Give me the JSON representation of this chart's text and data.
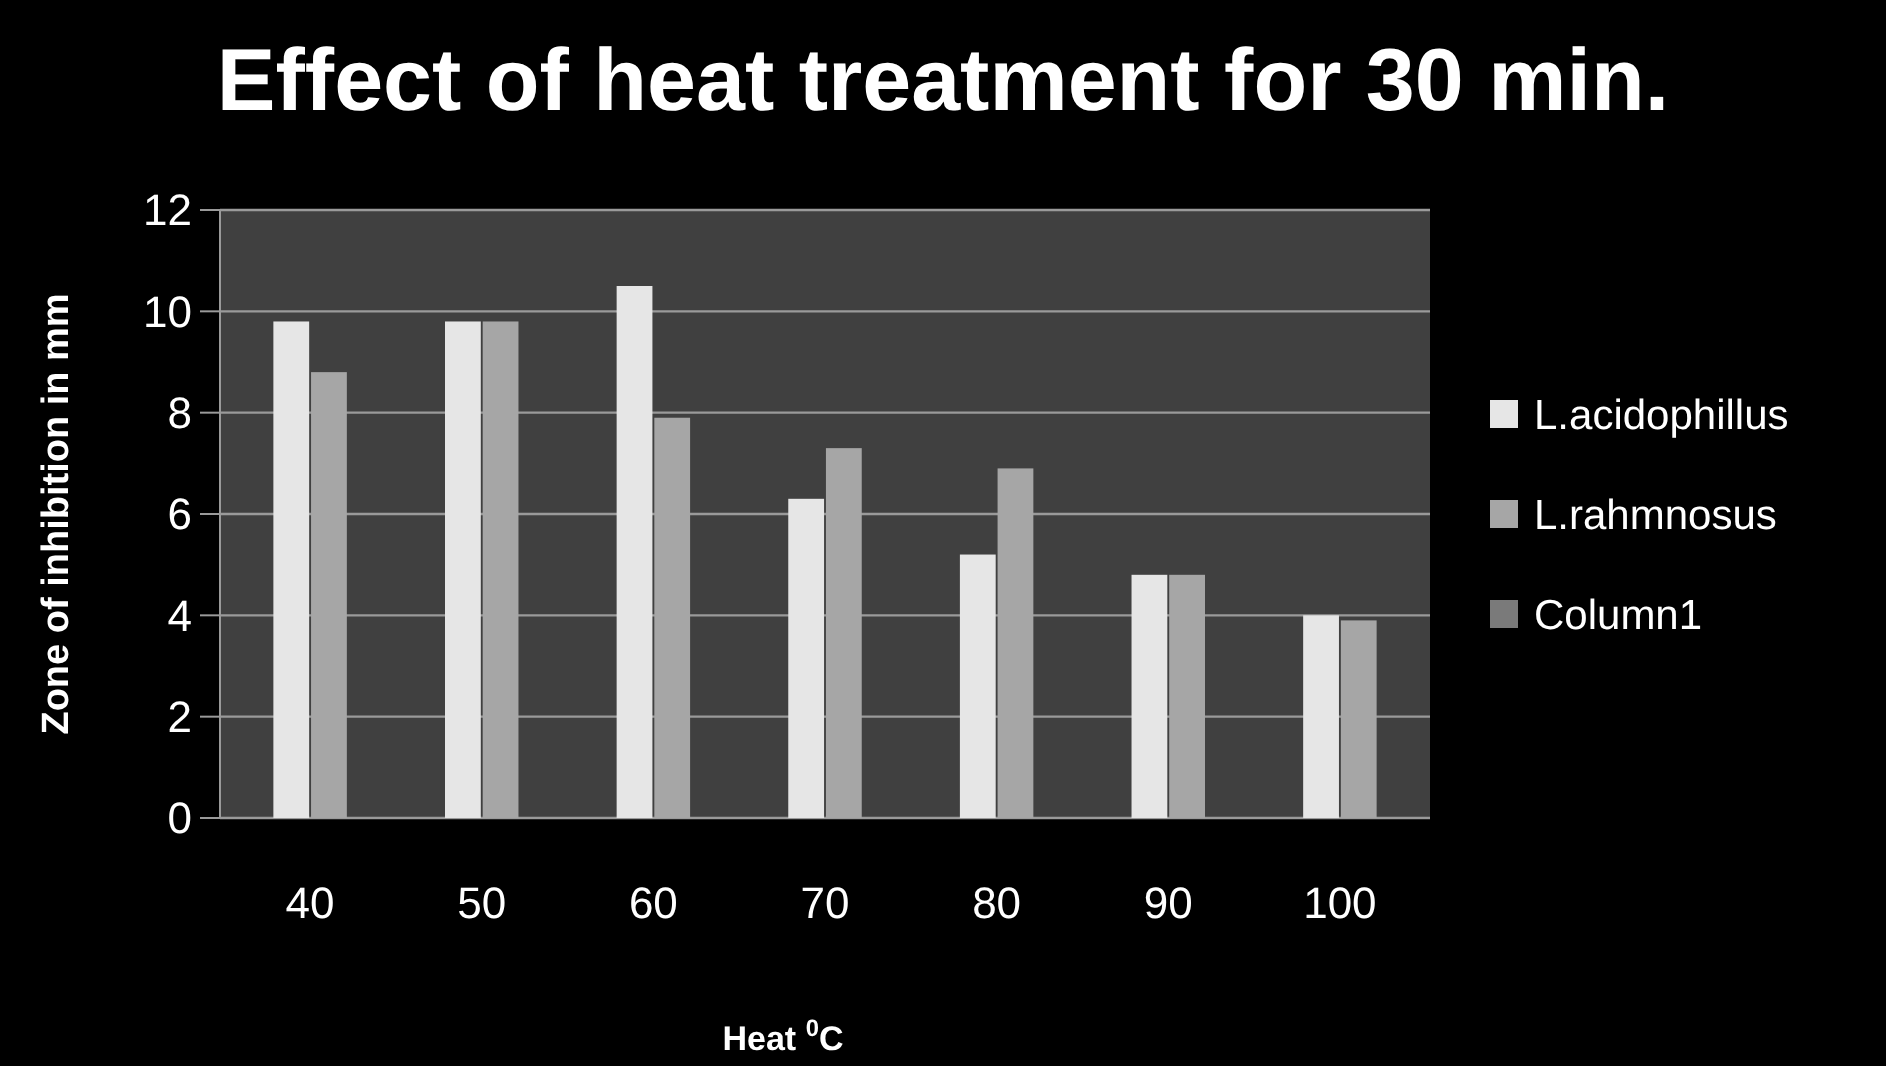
{
  "chart_data": {
    "type": "bar",
    "title": "Effect of heat treatment for 30 min.",
    "xlabel": "Heat $^{0}$C",
    "ylabel": "Zone of inhibition in mm",
    "categories": [
      "40",
      "50",
      "60",
      "70",
      "80",
      "90",
      "100"
    ],
    "series": [
      {
        "name": "L.acidophillus",
        "color": "#e6e6e6",
        "values": [
          9.8,
          9.8,
          10.5,
          6.3,
          5.2,
          4.8,
          4.0
        ]
      },
      {
        "name": "L.rahmnosus",
        "color": "#a6a6a6",
        "values": [
          8.8,
          9.8,
          7.9,
          7.3,
          6.9,
          4.8,
          3.9
        ]
      },
      {
        "name": "Column1",
        "color": "#7a7a7a",
        "values": [
          null,
          null,
          null,
          null,
          null,
          null,
          null
        ]
      }
    ],
    "ylim": [
      0,
      12
    ],
    "yticks": [
      0,
      2,
      4,
      6,
      8,
      10,
      12
    ],
    "grid": "y",
    "legend": "right"
  }
}
